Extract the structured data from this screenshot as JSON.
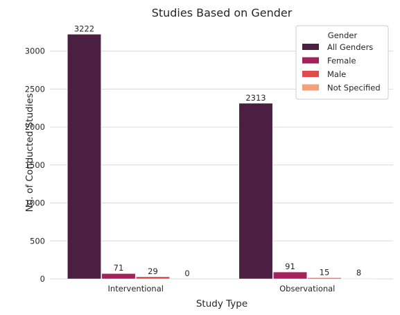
{
  "chart_data": {
    "type": "bar",
    "title": "Studies Based on Gender",
    "xlabel": "Study Type",
    "ylabel": "No. of Conducted Studies",
    "categories": [
      "Interventional",
      "Observational"
    ],
    "series": [
      {
        "name": "All Genders",
        "values": [
          3222,
          2313
        ],
        "color": "#4a1f42"
      },
      {
        "name": "Female",
        "values": [
          71,
          91
        ],
        "color": "#a3225c"
      },
      {
        "name": "Male",
        "values": [
          29,
          15
        ],
        "color": "#df4a4c"
      },
      {
        "name": "Not Specified",
        "values": [
          0,
          8
        ],
        "color": "#f3a07b"
      }
    ],
    "ylim": [
      0,
      3380
    ],
    "yticks": [
      0,
      500,
      1000,
      1500,
      2000,
      2500,
      3000
    ],
    "grid": "horizontal",
    "legend": {
      "title": "Gender",
      "placement": "top-right"
    }
  }
}
